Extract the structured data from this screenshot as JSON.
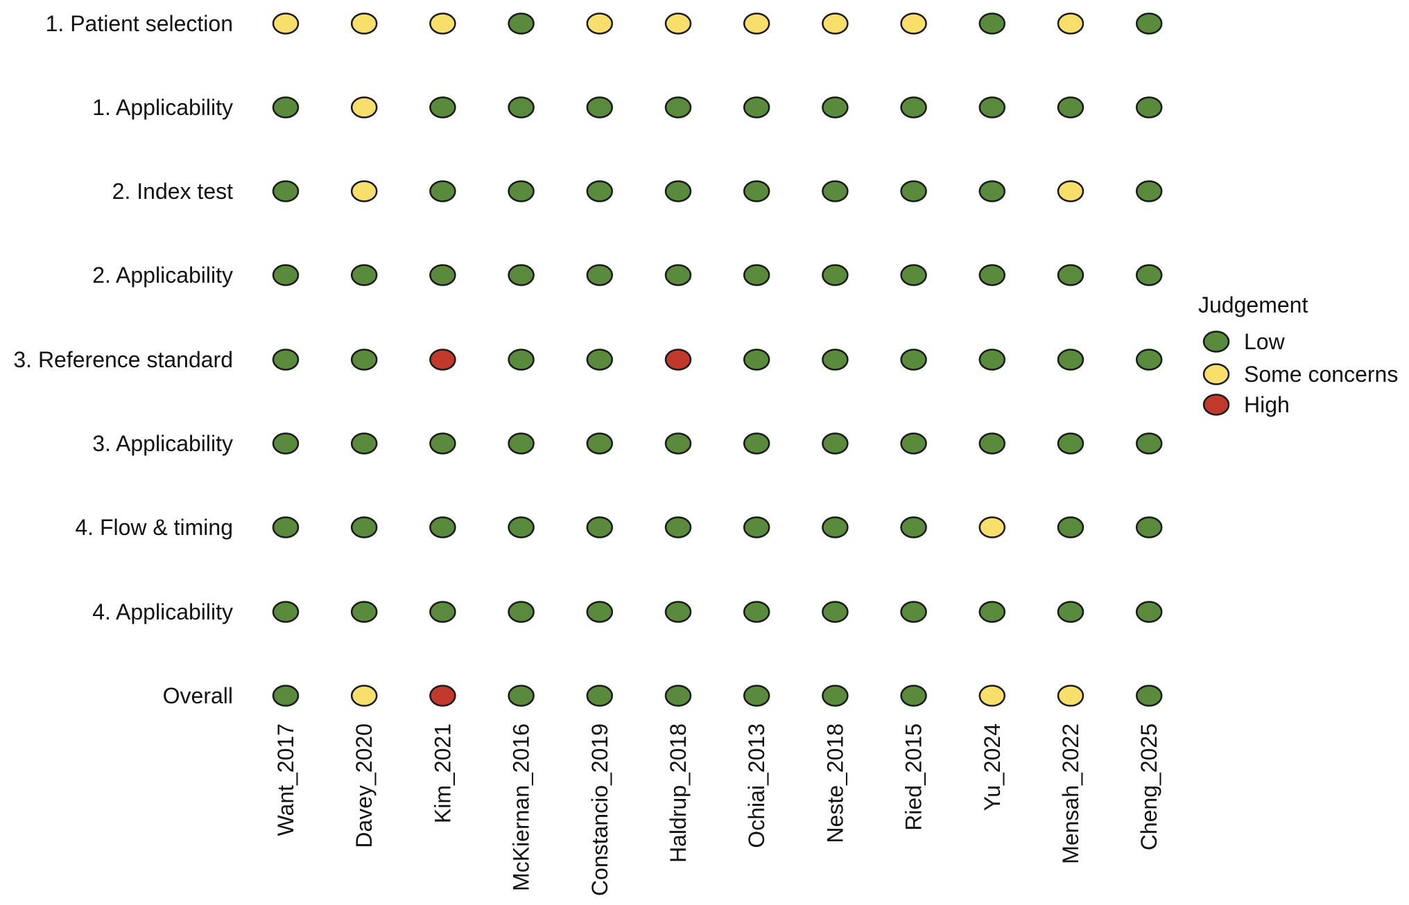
{
  "chart_data": {
    "type": "table",
    "rows": [
      "1. Patient selection",
      "1. Applicability",
      "2. Index test",
      "2. Applicability",
      "3. Reference standard",
      "3. Applicability",
      "4. Flow & timing",
      "4. Applicability",
      "Overall"
    ],
    "columns": [
      "Want_2017",
      "Davey_2020",
      "Kim_2021",
      "McKiernan_2016",
      "Constancio_2019",
      "Haldrup_2018",
      "Ochiai_2013",
      "Neste_2018",
      "Ried_2015",
      "Yu_2024",
      "Mensah_2022",
      "Cheng_2025"
    ],
    "judgements": [
      [
        "Some concerns",
        "Some concerns",
        "Some concerns",
        "Low",
        "Some concerns",
        "Some concerns",
        "Some concerns",
        "Some concerns",
        "Some concerns",
        "Low",
        "Some concerns",
        "Low"
      ],
      [
        "Low",
        "Some concerns",
        "Low",
        "Low",
        "Low",
        "Low",
        "Low",
        "Low",
        "Low",
        "Low",
        "Low",
        "Low"
      ],
      [
        "Low",
        "Some concerns",
        "Low",
        "Low",
        "Low",
        "Low",
        "Low",
        "Low",
        "Low",
        "Low",
        "Some concerns",
        "Low"
      ],
      [
        "Low",
        "Low",
        "Low",
        "Low",
        "Low",
        "Low",
        "Low",
        "Low",
        "Low",
        "Low",
        "Low",
        "Low"
      ],
      [
        "Low",
        "Low",
        "High",
        "Low",
        "Low",
        "High",
        "Low",
        "Low",
        "Low",
        "Low",
        "Low",
        "Low"
      ],
      [
        "Low",
        "Low",
        "Low",
        "Low",
        "Low",
        "Low",
        "Low",
        "Low",
        "Low",
        "Low",
        "Low",
        "Low"
      ],
      [
        "Low",
        "Low",
        "Low",
        "Low",
        "Low",
        "Low",
        "Low",
        "Low",
        "Low",
        "Some concerns",
        "Low",
        "Low"
      ],
      [
        "Low",
        "Low",
        "Low",
        "Low",
        "Low",
        "Low",
        "Low",
        "Low",
        "Low",
        "Low",
        "Low",
        "Low"
      ],
      [
        "Low",
        "Some concerns",
        "High",
        "Low",
        "Low",
        "Low",
        "Low",
        "Low",
        "Low",
        "Some concerns",
        "Some concerns",
        "Low"
      ]
    ],
    "legend": {
      "title": "Judgement",
      "placement": "right",
      "items": [
        {
          "label": "Low",
          "color": "#5a8a3c"
        },
        {
          "label": "Some concerns",
          "color": "#f8de6a"
        },
        {
          "label": "High",
          "color": "#c0392b"
        }
      ]
    }
  }
}
